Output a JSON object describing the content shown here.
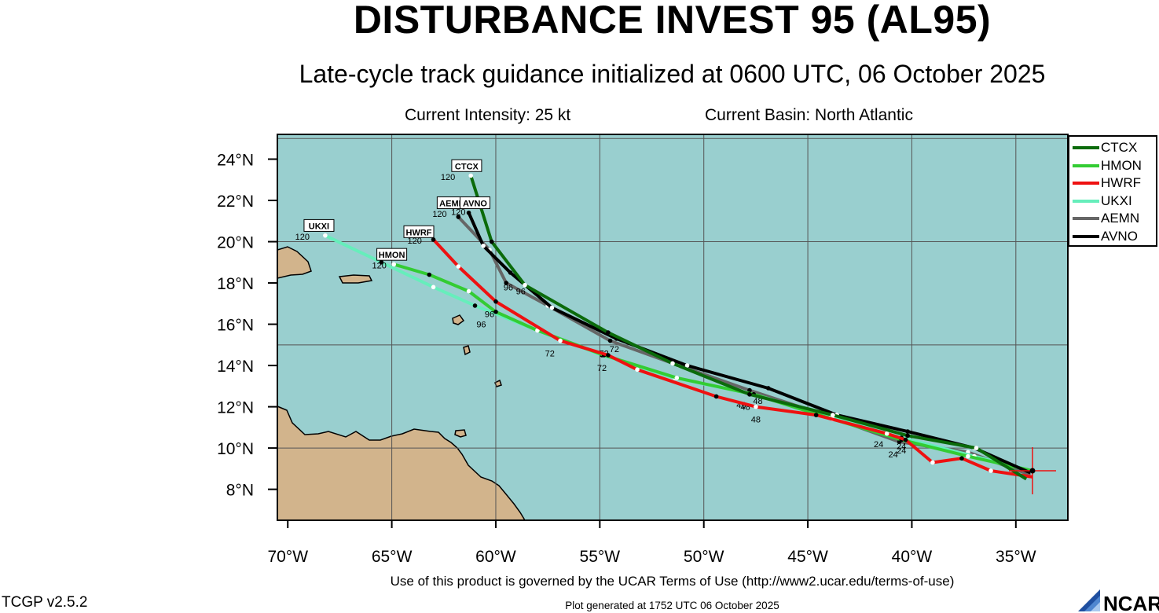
{
  "title": "DISTURBANCE INVEST 95 (AL95)",
  "subtitle": "Late-cycle track guidance initialized at 0600 UTC, 06 October 2025",
  "current_intensity": "Current Intensity: 25 kt",
  "current_basin": "Current Basin: North Atlantic",
  "terms": "Use of this product is governed by the UCAR Terms of Use (http://www2.ucar.edu/terms-of-use)",
  "version": "TCGP v2.5.2",
  "generated": "Plot generated at 1752 UTC   06 October 2025",
  "logo_text": "NCAR",
  "colors": {
    "ocean": "#99cfcf",
    "land": "#d2b48c",
    "CTCX": "#0b6b0b",
    "HMON": "#33cc33",
    "HWRF": "#ee1111",
    "UKXI": "#66eebb",
    "AEMN": "#666666",
    "AVNO": "#000000"
  },
  "map": {
    "lon_range": [
      -70.5,
      -32.5
    ],
    "lat_range": [
      6.5,
      25.2
    ],
    "lon_ticks": [
      -70,
      -65,
      -60,
      -55,
      -50,
      -45,
      -40,
      -35
    ],
    "lon_tick_labels": [
      "70°W",
      "65°W",
      "60°W",
      "55°W",
      "50°W",
      "45°W",
      "40°W",
      "35°W"
    ],
    "lat_ticks": [
      8,
      10,
      12,
      14,
      16,
      18,
      20,
      22,
      24
    ],
    "lat_tick_labels": [
      "8°N",
      "10°N",
      "12°N",
      "14°N",
      "16°N",
      "18°N",
      "20°N",
      "22°N",
      "24°N"
    ],
    "gridlines_lon": [
      -65,
      -60,
      -55,
      -50,
      -45,
      -40,
      -35
    ],
    "gridlines_lat": [
      10,
      15,
      20,
      25
    ],
    "initial_position": {
      "lon": -34.2,
      "lat": 8.9
    }
  },
  "legend": [
    "CTCX",
    "HMON",
    "HWRF",
    "UKXI",
    "AEMN",
    "AVNO"
  ],
  "tracks": [
    {
      "name": "CTCX",
      "label": "CTCX",
      "endLabel": "120",
      "points": [
        [
          -34.5,
          8.5
        ],
        [
          -36.9,
          10.0
        ],
        [
          -40.2,
          10.6
        ],
        [
          -43.8,
          11.6
        ],
        [
          -47.8,
          12.6
        ],
        [
          -51.5,
          14.1
        ],
        [
          -54.6,
          15.6
        ],
        [
          -58.6,
          17.9
        ],
        [
          -60.2,
          20.0
        ],
        [
          -61.2,
          23.2
        ]
      ],
      "hourLabels": []
    },
    {
      "name": "HMON",
      "label": "HMON",
      "endLabel": "120",
      "points": [
        [
          -34.2,
          8.9
        ],
        [
          -37.3,
          9.6
        ],
        [
          -40.5,
          10.4
        ],
        [
          -43.8,
          11.4
        ],
        [
          -47.6,
          12.6
        ],
        [
          -51.3,
          13.4
        ],
        [
          -54.8,
          14.5
        ],
        [
          -58.0,
          15.7
        ],
        [
          -60.0,
          16.6
        ],
        [
          -61.3,
          17.6
        ],
        [
          -63.2,
          18.4
        ],
        [
          -64.9,
          18.9
        ]
      ],
      "hourLabels": []
    },
    {
      "name": "HWRF",
      "label": "HWRF",
      "endLabel": "120",
      "points": [
        [
          -34.2,
          8.6
        ],
        [
          -36.2,
          8.9
        ],
        [
          -37.6,
          9.5
        ],
        [
          -39.0,
          9.3
        ],
        [
          -40.3,
          10.4
        ],
        [
          -41.2,
          10.7
        ],
        [
          -44.6,
          11.6
        ],
        [
          -47.5,
          12.0
        ],
        [
          -49.4,
          12.5
        ],
        [
          -53.2,
          13.8
        ],
        [
          -54.6,
          14.5
        ],
        [
          -56.9,
          15.2
        ],
        [
          -60.0,
          17.1
        ],
        [
          -61.8,
          18.8
        ],
        [
          -63.0,
          20.1
        ]
      ],
      "hourLabels": [
        [
          -41.6,
          10.5,
          "24"
        ],
        [
          -47.5,
          11.7,
          "48"
        ],
        [
          -57.4,
          14.9,
          "72"
        ],
        [
          -60.3,
          16.8,
          "96"
        ]
      ]
    },
    {
      "name": "UKXI",
      "label": "UKXI",
      "endLabel": "120",
      "points": [
        [
          -34.2,
          8.9
        ],
        [
          -37.0,
          9.6
        ],
        [
          -40.5,
          10.5
        ],
        [
          -43.9,
          11.5
        ],
        [
          -47.6,
          12.6
        ],
        [
          -51.4,
          13.4
        ],
        [
          -54.9,
          14.5
        ],
        [
          -58.0,
          15.7
        ],
        [
          -61.0,
          16.9
        ],
        [
          -63.0,
          17.8
        ],
        [
          -65.5,
          19.0
        ],
        [
          -68.2,
          20.3
        ]
      ],
      "hourLabels": [
        [
          -40.5,
          10.2,
          "24"
        ],
        [
          -48.0,
          12.3,
          "48"
        ],
        [
          -54.9,
          14.2,
          "72"
        ],
        [
          -60.7,
          16.3,
          "96"
        ]
      ]
    },
    {
      "name": "AEMN",
      "label": "AEMN",
      "endLabel": "120",
      "points": [
        [
          -34.3,
          8.7
        ],
        [
          -37.3,
          9.8
        ],
        [
          -40.6,
          10.3
        ],
        [
          -43.9,
          11.5
        ],
        [
          -47.8,
          12.8
        ],
        [
          -51.2,
          14.0
        ],
        [
          -54.5,
          15.2
        ],
        [
          -57.5,
          16.9
        ],
        [
          -59.5,
          18.0
        ],
        [
          -60.3,
          19.6
        ],
        [
          -61.8,
          21.2
        ]
      ],
      "hourLabels": [
        [
          -40.9,
          10.0,
          "24"
        ],
        [
          -48.2,
          12.4,
          "48"
        ],
        [
          -54.8,
          14.9,
          "72"
        ],
        [
          -58.8,
          17.9,
          "96"
        ]
      ]
    },
    {
      "name": "AVNO",
      "label": "AVNO",
      "endLabel": "120",
      "points": [
        [
          -34.3,
          8.8
        ],
        [
          -37.0,
          10.0
        ],
        [
          -40.2,
          10.8
        ],
        [
          -43.6,
          11.6
        ],
        [
          -46.9,
          12.9
        ],
        [
          -50.8,
          14.0
        ],
        [
          -54.2,
          15.3
        ],
        [
          -57.3,
          16.8
        ],
        [
          -59.3,
          18.5
        ],
        [
          -60.6,
          19.8
        ],
        [
          -61.3,
          21.4
        ]
      ],
      "hourLabels": [
        [
          -40.5,
          10.4,
          "24"
        ],
        [
          -47.4,
          12.6,
          "48"
        ],
        [
          -54.3,
          15.1,
          "72"
        ],
        [
          -59.4,
          18.1,
          "96"
        ]
      ]
    }
  ],
  "label_positions": {
    "CTCX": [
      -61.4,
      23.4
    ],
    "AEMN": [
      -62.1,
      21.6
    ],
    "AVNO": [
      -61.0,
      21.6
    ],
    "HWRF": [
      -63.7,
      20.2
    ],
    "UKXI": [
      -68.5,
      20.5
    ],
    "HMON": [
      -65.0,
      19.1
    ]
  },
  "end_label_positions": {
    "CTCX": [
      -62.3,
      23.0
    ],
    "AEMN": [
      -62.7,
      21.2
    ],
    "AVNO": [
      -61.8,
      21.3
    ],
    "HWRF": [
      -63.9,
      19.9
    ],
    "UKXI": [
      -69.3,
      20.1
    ],
    "HMON": [
      -65.6,
      18.7
    ]
  }
}
